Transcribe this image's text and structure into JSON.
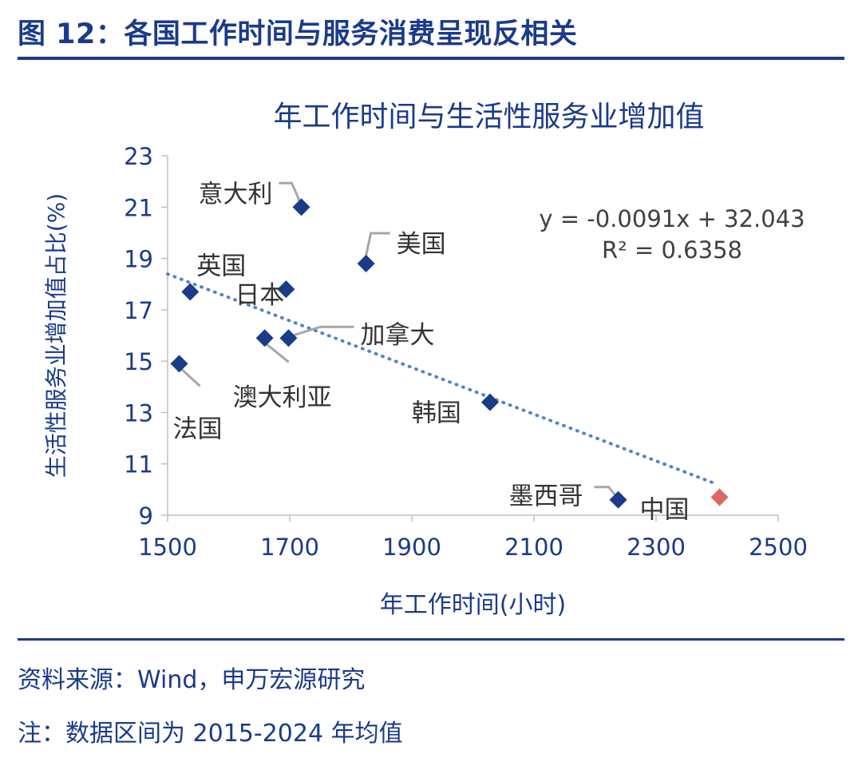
{
  "figure_title": "图 12：各国工作时间与服务消费呈现反相关",
  "source": "资料来源：Wind，申万宏源研究",
  "note": "注：数据区间为 2015-2024 年均值",
  "chart_data": {
    "type": "scatter",
    "title": "年工作时间与生活性服务业增加值",
    "xlabel": "年工作时间(小时)",
    "ylabel": "生活性服务业增加值占比(%)",
    "xlim": [
      1500,
      2500
    ],
    "ylim": [
      9,
      23
    ],
    "xticks": [
      1500,
      1700,
      1900,
      2100,
      2300,
      2500
    ],
    "yticks": [
      9,
      11,
      13,
      15,
      17,
      19,
      21,
      23
    ],
    "grid": false,
    "legend": "none",
    "points": [
      {
        "label": "意大利",
        "x": 1719,
        "y": 21.0,
        "color": "#1a3a8a"
      },
      {
        "label": "美国",
        "x": 1825,
        "y": 18.8,
        "color": "#1a3a8a"
      },
      {
        "label": "英国",
        "x": 1537,
        "y": 17.7,
        "color": "#1a3a8a"
      },
      {
        "label": "日本",
        "x": 1694,
        "y": 17.8,
        "color": "#1a3a8a"
      },
      {
        "label": "加拿大",
        "x": 1698,
        "y": 15.9,
        "color": "#1a3a8a"
      },
      {
        "label": "澳大利亚",
        "x": 1659,
        "y": 15.9,
        "color": "#1a3a8a"
      },
      {
        "label": "法国",
        "x": 1519,
        "y": 14.9,
        "color": "#1a3a8a"
      },
      {
        "label": "韩国",
        "x": 2028,
        "y": 13.4,
        "color": "#1a3a8a"
      },
      {
        "label": "墨西哥",
        "x": 2238,
        "y": 9.6,
        "color": "#1a3a8a"
      },
      {
        "label": "中国",
        "x": 2404,
        "y": 9.7,
        "color": "#e06666"
      }
    ],
    "trendline": {
      "equation": "y = -0.0091x + 32.043",
      "r_squared": "R² = 0.6358",
      "slope": -0.0091,
      "intercept": 32.043,
      "x_range": [
        1500,
        2400
      ],
      "color": "#4f86c6",
      "style": "dotted"
    },
    "colors": {
      "axis_text": "#1a3a8a",
      "label_text": "#333333",
      "leader": "#a6a6a6"
    }
  }
}
